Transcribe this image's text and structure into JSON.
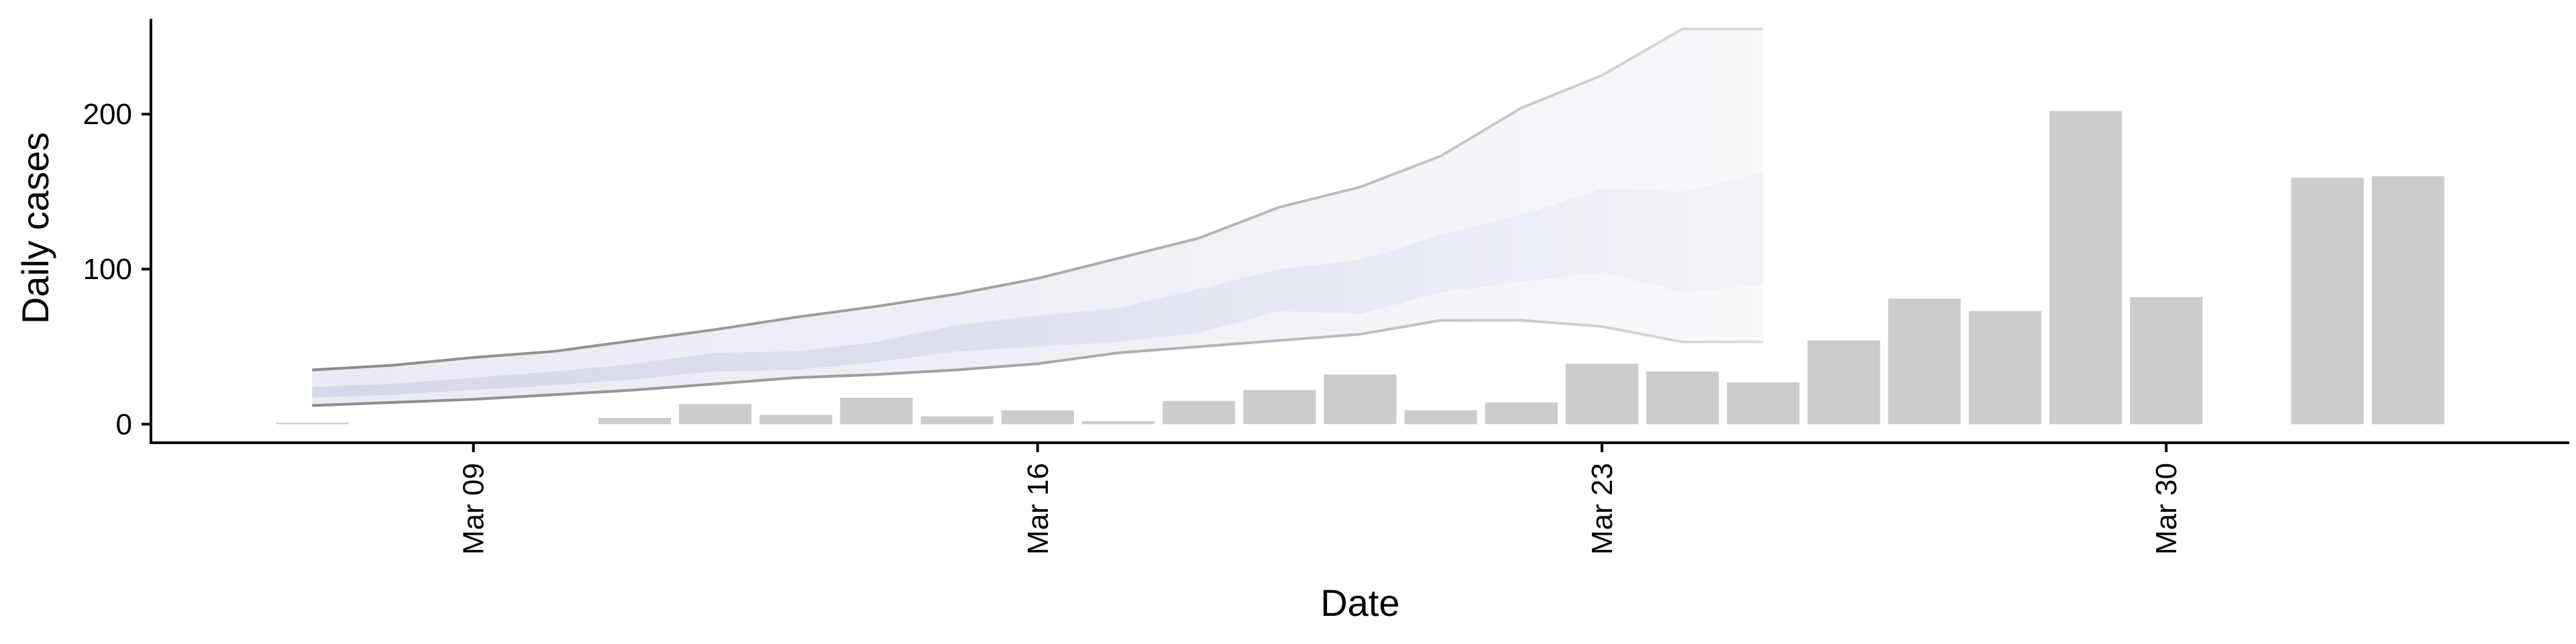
{
  "chart_data": {
    "type": "bar",
    "title": "",
    "xlabel": "Date",
    "ylabel": "Daily cases",
    "x_ticks": [
      {
        "date": "2020-03-09",
        "label": "Mar 09"
      },
      {
        "date": "2020-03-16",
        "label": "Mar 16"
      },
      {
        "date": "2020-03-23",
        "label": "Mar 23"
      },
      {
        "date": "2020-03-30",
        "label": "Mar 30"
      }
    ],
    "y_ticks": [
      0,
      100,
      200
    ],
    "xlim": [
      "2020-03-05",
      "2020-04-04"
    ],
    "ylim": [
      -12,
      265
    ],
    "grid": false,
    "series": [
      {
        "type": "bar",
        "color": "#cccccc",
        "points": [
          {
            "date": "2020-03-07",
            "value": 1
          },
          {
            "date": "2020-03-11",
            "value": 4
          },
          {
            "date": "2020-03-12",
            "value": 13
          },
          {
            "date": "2020-03-13",
            "value": 6
          },
          {
            "date": "2020-03-14",
            "value": 17
          },
          {
            "date": "2020-03-15",
            "value": 5
          },
          {
            "date": "2020-03-16",
            "value": 9
          },
          {
            "date": "2020-03-17",
            "value": 2
          },
          {
            "date": "2020-03-18",
            "value": 15
          },
          {
            "date": "2020-03-19",
            "value": 22
          },
          {
            "date": "2020-03-20",
            "value": 32
          },
          {
            "date": "2020-03-21",
            "value": 9
          },
          {
            "date": "2020-03-22",
            "value": 14
          },
          {
            "date": "2020-03-23",
            "value": 39
          },
          {
            "date": "2020-03-24",
            "value": 34
          },
          {
            "date": "2020-03-25",
            "value": 27
          },
          {
            "date": "2020-03-26",
            "value": 54
          },
          {
            "date": "2020-03-27",
            "value": 81
          },
          {
            "date": "2020-03-28",
            "value": 73
          },
          {
            "date": "2020-03-29",
            "value": 202
          },
          {
            "date": "2020-03-30",
            "value": 82
          },
          {
            "date": "2020-04-01",
            "value": 159
          },
          {
            "date": "2020-04-02",
            "value": 160
          }
        ]
      },
      {
        "type": "ribbon",
        "bands": [
          {
            "color": "#e9eaf3",
            "line_color": "#8a8a8a"
          },
          {
            "color": "#d5d8e8"
          }
        ],
        "points": [
          {
            "date": "2020-03-07",
            "outer": [
              12,
              35
            ],
            "inner": [
              17,
              24
            ]
          },
          {
            "date": "2020-03-08",
            "outer": [
              14,
              38
            ],
            "inner": [
              19,
              26
            ]
          },
          {
            "date": "2020-03-09",
            "outer": [
              16,
              43
            ],
            "inner": [
              22,
              30
            ]
          },
          {
            "date": "2020-03-10",
            "outer": [
              19,
              47
            ],
            "inner": [
              25,
              34
            ]
          },
          {
            "date": "2020-03-11",
            "outer": [
              22,
              54
            ],
            "inner": [
              29,
              39
            ]
          },
          {
            "date": "2020-03-12",
            "outer": [
              26,
              61
            ],
            "inner": [
              34,
              46
            ]
          },
          {
            "date": "2020-03-13",
            "outer": [
              30,
              69
            ],
            "inner": [
              35,
              47
            ]
          },
          {
            "date": "2020-03-14",
            "outer": [
              32,
              76
            ],
            "inner": [
              40,
              53
            ]
          },
          {
            "date": "2020-03-15",
            "outer": [
              35,
              84
            ],
            "inner": [
              47,
              64
            ]
          },
          {
            "date": "2020-03-16",
            "outer": [
              39,
              94
            ],
            "inner": [
              50,
              70
            ]
          },
          {
            "date": "2020-03-17",
            "outer": [
              46,
              107
            ],
            "inner": [
              53,
              75
            ]
          },
          {
            "date": "2020-03-18",
            "outer": [
              50,
              120
            ],
            "inner": [
              59,
              87
            ]
          },
          {
            "date": "2020-03-19",
            "outer": [
              54,
              140
            ],
            "inner": [
              73,
              100
            ]
          },
          {
            "date": "2020-03-20",
            "outer": [
              58,
              153
            ],
            "inner": [
              71,
              106
            ]
          },
          {
            "date": "2020-03-21",
            "outer": [
              67,
              173
            ],
            "inner": [
              85,
              122
            ]
          },
          {
            "date": "2020-03-22",
            "outer": [
              67,
              204
            ],
            "inner": [
              92,
              135
            ]
          },
          {
            "date": "2020-03-23",
            "outer": [
              63,
              225
            ],
            "inner": [
              98,
              152
            ]
          },
          {
            "date": "2020-03-24",
            "outer": [
              53,
              255
            ],
            "inner": [
              85,
              150
            ]
          },
          {
            "date": "2020-03-25",
            "outer": [
              53,
              255
            ],
            "inner": [
              90,
              163
            ]
          }
        ]
      }
    ]
  }
}
